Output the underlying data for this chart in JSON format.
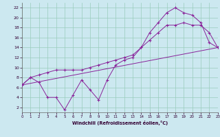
{
  "xlabel": "Windchill (Refroidissement éolien,°C)",
  "bg_color": "#cce8f0",
  "grid_color": "#99ccbb",
  "line_color": "#882299",
  "line1_x": [
    0,
    1,
    2,
    3,
    4,
    5,
    6,
    7,
    8,
    9,
    10,
    11,
    12,
    13,
    14,
    15,
    16,
    17,
    18,
    19,
    20,
    21,
    22,
    23
  ],
  "line1_y": [
    6.5,
    8.0,
    7.0,
    4.0,
    4.0,
    1.5,
    4.5,
    7.5,
    5.5,
    3.5,
    7.5,
    10.5,
    11.5,
    12.0,
    14.0,
    17.0,
    19.0,
    21.0,
    22.0,
    21.0,
    20.5,
    19.0,
    15.0,
    14.0
  ],
  "line2_x": [
    0,
    1,
    2,
    3,
    4,
    5,
    6,
    7,
    8,
    9,
    10,
    11,
    12,
    13,
    14,
    15,
    16,
    17,
    18,
    19,
    20,
    21,
    22,
    23
  ],
  "line2_y": [
    6.5,
    8.0,
    8.5,
    9.0,
    9.5,
    9.5,
    9.5,
    9.5,
    10.0,
    10.5,
    11.0,
    11.5,
    12.0,
    12.5,
    14.0,
    15.5,
    17.0,
    18.5,
    18.5,
    19.0,
    18.5,
    18.5,
    17.0,
    14.0
  ],
  "line3_x": [
    0,
    23
  ],
  "line3_y": [
    6.5,
    14.0
  ],
  "xlim": [
    0,
    23
  ],
  "ylim": [
    1,
    23
  ],
  "xticks": [
    0,
    1,
    2,
    3,
    4,
    5,
    6,
    7,
    8,
    9,
    10,
    11,
    12,
    13,
    14,
    15,
    16,
    17,
    18,
    19,
    20,
    21,
    22,
    23
  ],
  "yticks": [
    2,
    4,
    6,
    8,
    10,
    12,
    14,
    16,
    18,
    20,
    22
  ]
}
